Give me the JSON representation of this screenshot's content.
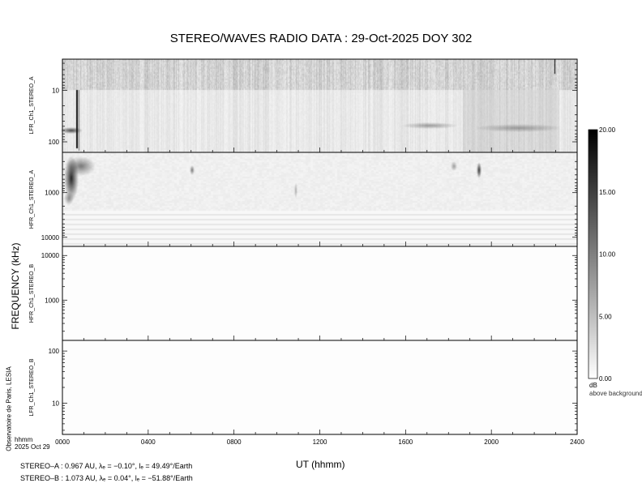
{
  "title": "STEREO/WAVES  RADIO  DATA : 29-Oct-2025  DOY 302",
  "chart_data": {
    "type": "heatmap",
    "title": "STEREO/WAVES  RADIO  DATA : 29-Oct-2025  DOY 302",
    "xlabel": "UT (hhmm)",
    "ylabel": "FREQUENCY (kHz)",
    "x_ticks": [
      "0000",
      "0400",
      "0800",
      "1200",
      "1600",
      "2000",
      "2400"
    ],
    "x_range_hours": [
      0,
      24
    ],
    "x_corner_labels": {
      "unit": "hhmm",
      "date": "2025 Oct 29"
    },
    "y_scale": "log",
    "panels": [
      {
        "name": "LFR_Ch1_STEREO_A",
        "y_ticks": [
          "10",
          "100"
        ],
        "range_khz": [
          2.5,
          160
        ],
        "direction": "frequency increasing downward"
      },
      {
        "name": "HFR_Ch1_STEREO_A",
        "y_ticks": [
          "1000",
          "10000"
        ],
        "range_khz": [
          125,
          16000
        ],
        "direction": "frequency increasing downward"
      },
      {
        "name": "HFR_Ch1_STEREO_B",
        "y_ticks": [
          "10000",
          "1000"
        ],
        "range_khz": [
          125,
          16000
        ],
        "direction": "frequency increasing upward"
      },
      {
        "name": "LFR_Ch1_STEREO_B",
        "y_ticks": [
          "100",
          "10"
        ],
        "range_khz": [
          2.5,
          160
        ],
        "direction": "frequency decreasing downward"
      }
    ],
    "colorbar": {
      "ticks": [
        "20.00",
        "15.00",
        "10.00",
        "5.00",
        "0.00"
      ],
      "range": [
        0,
        20
      ],
      "unit": "dB",
      "label": "above background",
      "colormap": "white-to-black"
    }
  },
  "orbit": {
    "stereo_a": "STEREO–A : 0.967 AU, λₑ = −0.10°, lₑ = 49.49°/Earth",
    "stereo_b": "STEREO–B : 1.073 AU, λₑ = 0.04°, lₑ = −51.88°/Earth"
  },
  "credit": "Observatoire de Paris, LESIA"
}
